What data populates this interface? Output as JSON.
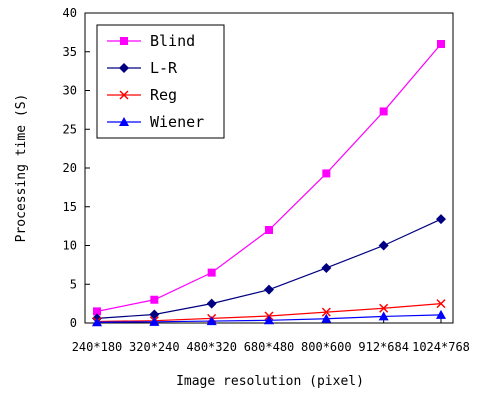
{
  "chart_data": {
    "type": "line",
    "xlabel": "Image resolution (pixel)",
    "ylabel": "Processing time (S)",
    "categories": [
      "240*180",
      "320*240",
      "480*320",
      "680*480",
      "800*600",
      "912*684",
      "1024*768"
    ],
    "ylim": [
      0,
      40
    ],
    "yticks": [
      0,
      5,
      10,
      15,
      20,
      25,
      30,
      35,
      40
    ],
    "grid": false,
    "legend": "top-left",
    "series": [
      {
        "name": "Blind",
        "color": "#ff00ff",
        "marker": "square",
        "values": [
          1.5,
          3.0,
          6.5,
          12.0,
          19.3,
          27.3,
          36.0
        ]
      },
      {
        "name": "L-R",
        "color": "#000080",
        "marker": "diamond",
        "values": [
          0.6,
          1.1,
          2.5,
          4.3,
          7.1,
          10.0,
          13.4
        ]
      },
      {
        "name": "Reg",
        "color": "#ff0000",
        "marker": "x",
        "values": [
          0.2,
          0.3,
          0.6,
          0.9,
          1.4,
          1.9,
          2.5
        ]
      },
      {
        "name": "Wiener",
        "color": "#0000ff",
        "marker": "triangle",
        "values": [
          0.1,
          0.15,
          0.25,
          0.35,
          0.55,
          0.85,
          1.05
        ]
      }
    ]
  }
}
